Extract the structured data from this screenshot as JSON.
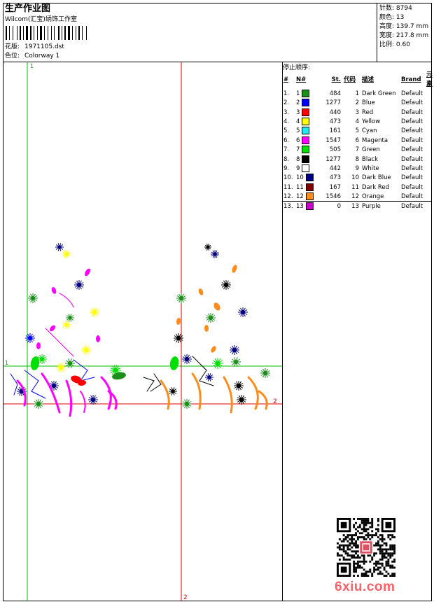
{
  "header": {
    "title": "生产作业图",
    "studio": "Wilcom(汇宝)绣饰工作室",
    "design_label": "花版:",
    "design_value": "1971105.dst",
    "colorway_label": "色位:",
    "colorway_value": "Colorway 1"
  },
  "stats": [
    {
      "label": "针数:",
      "value": "8794"
    },
    {
      "label": "颜色:",
      "value": "13"
    },
    {
      "label": "高度:",
      "value": "139.7 mm"
    },
    {
      "label": "宽度:",
      "value": "217.8 mm"
    },
    {
      "label": "比例:",
      "value": "0.60"
    }
  ],
  "stop_sequence": {
    "title": "停止顺序:",
    "headers": [
      "#",
      "N#",
      "St.",
      "代码",
      "描述",
      "Brand",
      "元素"
    ],
    "rows": [
      {
        "idx": "1.",
        "n": "1",
        "color": "#1a8f1a",
        "st": "484",
        "code": "1",
        "desc": "Dark Green",
        "brand": "Default"
      },
      {
        "idx": "2.",
        "n": "2",
        "color": "#0000ff",
        "st": "1277",
        "code": "2",
        "desc": "Blue",
        "brand": "Default"
      },
      {
        "idx": "3.",
        "n": "3",
        "color": "#ff0000",
        "st": "440",
        "code": "3",
        "desc": "Red",
        "brand": "Default"
      },
      {
        "idx": "4.",
        "n": "4",
        "color": "#ffff00",
        "st": "473",
        "code": "4",
        "desc": "Yellow",
        "brand": "Default"
      },
      {
        "idx": "5.",
        "n": "5",
        "color": "#22e8f0",
        "st": "161",
        "code": "5",
        "desc": "Cyan",
        "brand": "Default"
      },
      {
        "idx": "6.",
        "n": "6",
        "color": "#ff00ff",
        "st": "1547",
        "code": "6",
        "desc": "Magenta",
        "brand": "Default"
      },
      {
        "idx": "7.",
        "n": "7",
        "color": "#00e000",
        "st": "505",
        "code": "7",
        "desc": "Green",
        "brand": "Default"
      },
      {
        "idx": "8.",
        "n": "8",
        "color": "#000000",
        "st": "1277",
        "code": "8",
        "desc": "Black",
        "brand": "Default"
      },
      {
        "idx": "9.",
        "n": "9",
        "color": "#ffffff",
        "st": "442",
        "code": "9",
        "desc": "White",
        "brand": "Default"
      },
      {
        "idx": "10.",
        "n": "10",
        "color": "#000080",
        "st": "473",
        "code": "10",
        "desc": "Dark Blue",
        "brand": "Default"
      },
      {
        "idx": "11.",
        "n": "11",
        "color": "#800000",
        "st": "167",
        "code": "11",
        "desc": "Dark Red",
        "brand": "Default"
      },
      {
        "idx": "12.",
        "n": "12",
        "color": "#ff8c1a",
        "st": "1546",
        "code": "12",
        "desc": "Orange",
        "brand": "Default"
      },
      {
        "idx": "13.",
        "n": "13",
        "color": "#c800c8",
        "st": "0",
        "code": "13",
        "desc": "Purple",
        "brand": "Default"
      }
    ]
  },
  "guides": {
    "marker_1": "1",
    "marker_2": "2"
  },
  "watermark": "6xiu.com"
}
